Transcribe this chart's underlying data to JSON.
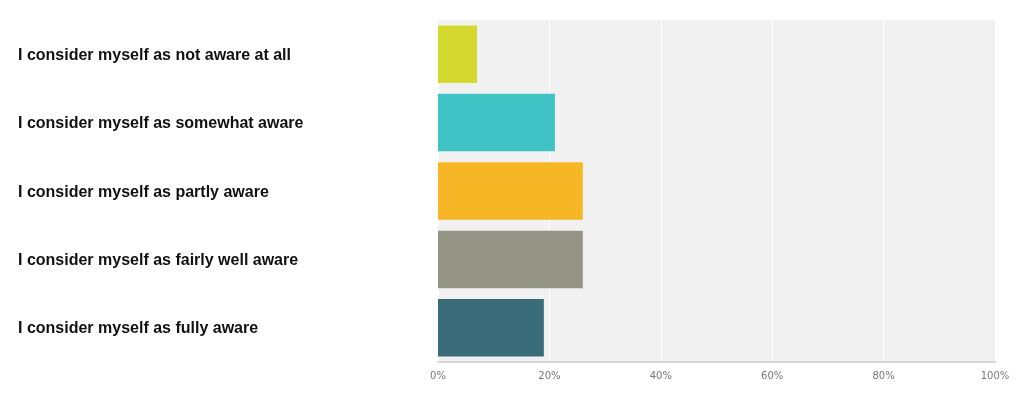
{
  "chart_data": {
    "type": "bar",
    "orientation": "horizontal",
    "categories": [
      "I consider myself as not aware at all",
      "I consider myself as somewhat aware",
      "I consider myself as partly aware",
      "I consider myself as fairly well aware",
      "I consider myself as fully aware"
    ],
    "values": [
      7,
      21,
      26,
      26,
      19
    ],
    "colors": [
      "#d4d930",
      "#3fc3c5",
      "#f7b626",
      "#939484",
      "#3a6b78"
    ],
    "xlim": [
      0,
      100
    ],
    "xticks": [
      {
        "value": 0,
        "label": "0%"
      },
      {
        "value": 20,
        "label": "20%"
      },
      {
        "value": 40,
        "label": "40%"
      },
      {
        "value": 60,
        "label": "60%"
      },
      {
        "value": 80,
        "label": "80%"
      },
      {
        "value": 100,
        "label": "100%"
      }
    ],
    "grid": "x"
  }
}
